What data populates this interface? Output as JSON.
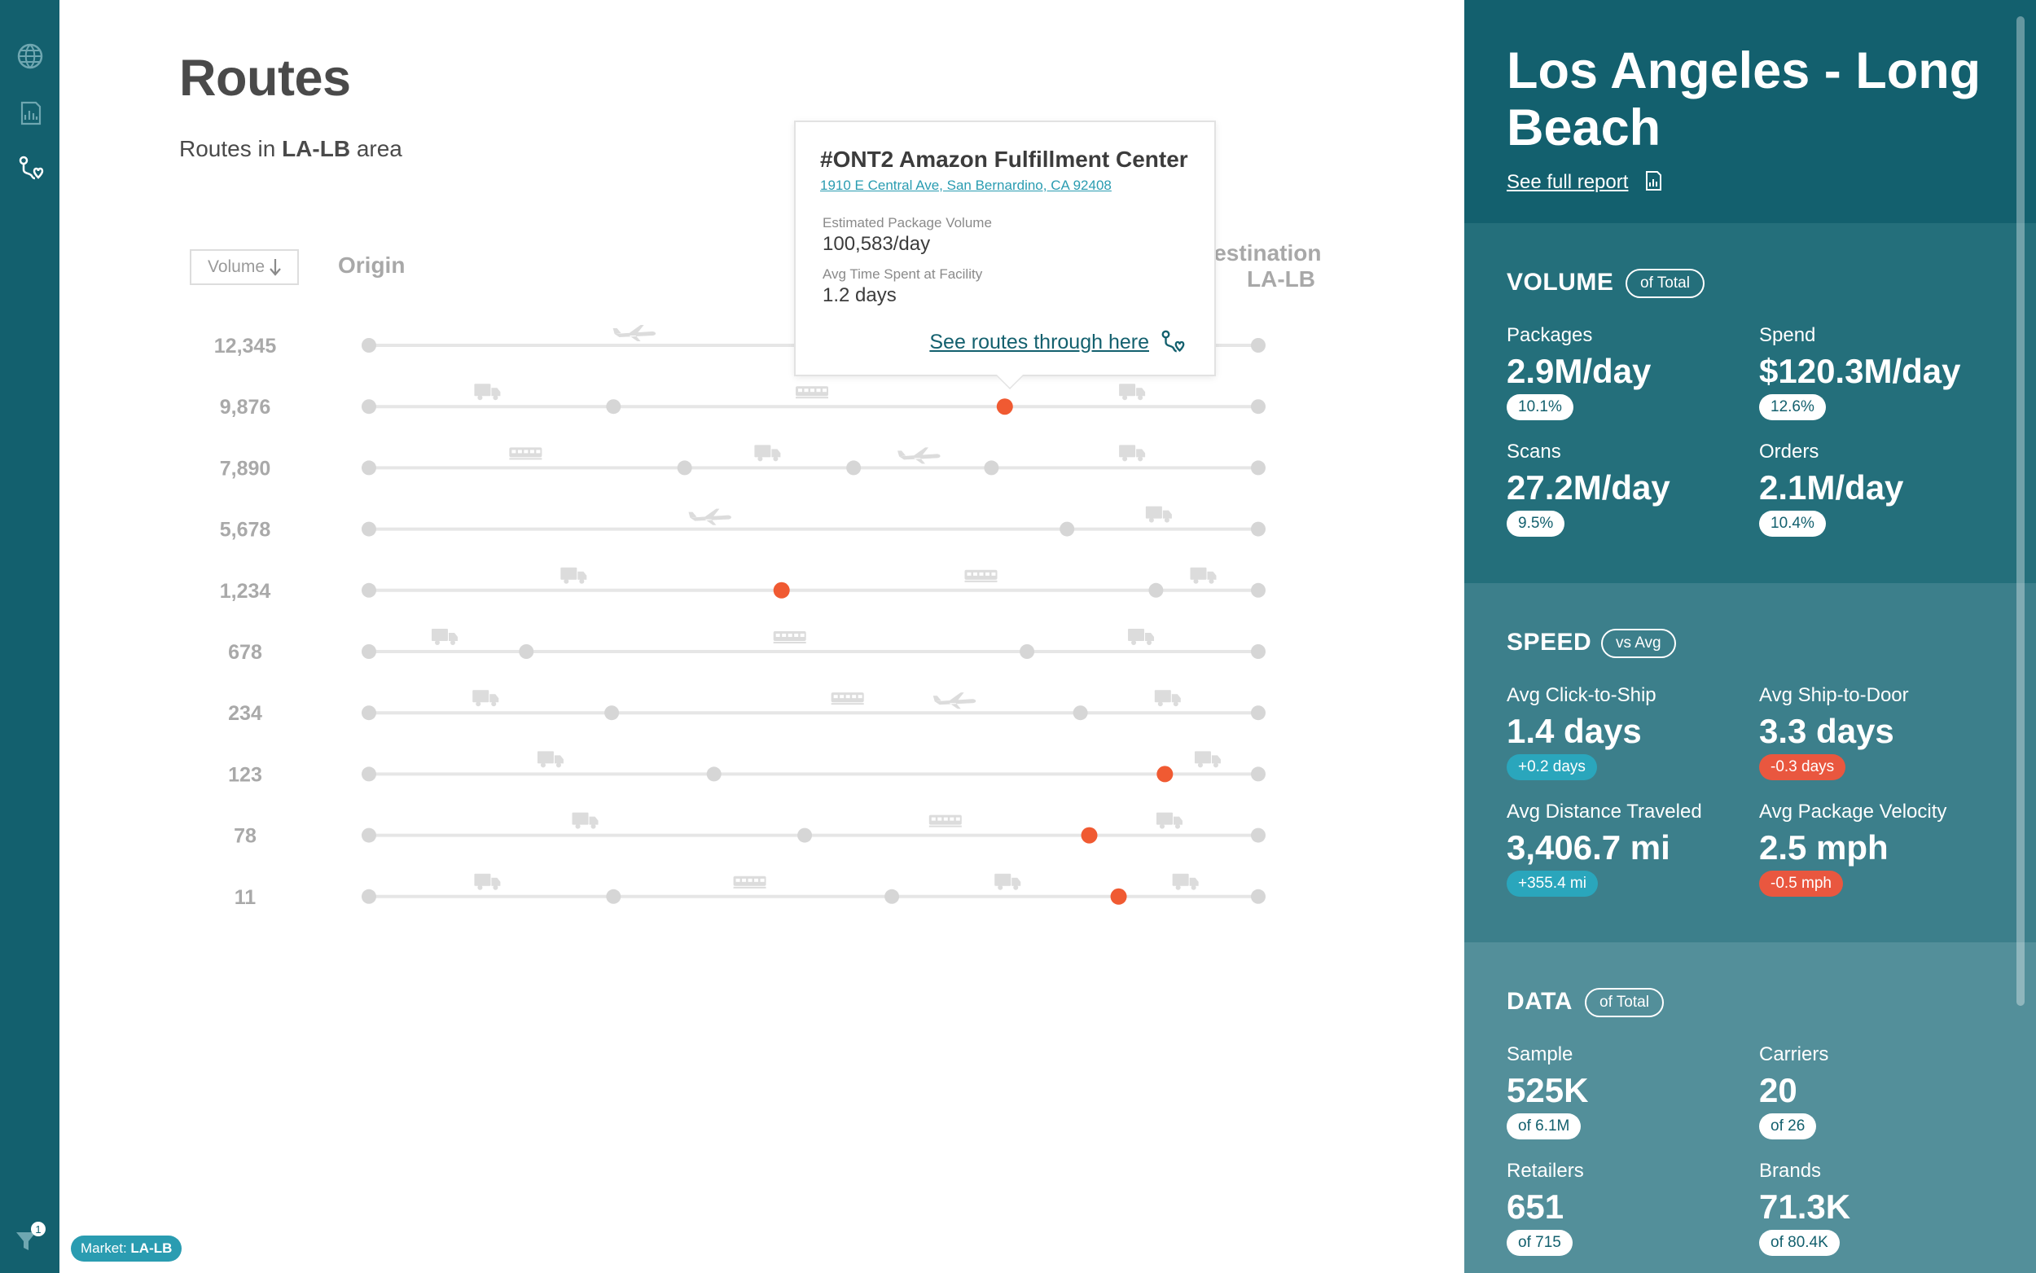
{
  "nav": {
    "items": [
      "globe-icon",
      "report-icon",
      "routes-icon"
    ],
    "active": "routes-icon",
    "filter_count": "1"
  },
  "market_badge": {
    "prefix": "Market: ",
    "value": "LA-LB"
  },
  "page": {
    "title": "Routes",
    "subtitle_pre": "Routes in ",
    "subtitle_bold": "LA-LB",
    "subtitle_post": " area"
  },
  "columns": {
    "sort_label": "Volume",
    "sort_icon": "arrow-down-icon",
    "origin": "Origin",
    "destination": "Destination",
    "destination_sub": "LA-LB"
  },
  "routes": [
    {
      "volume": "12,345",
      "nodes": [],
      "highlights": [],
      "vehicles": [
        {
          "type": "plane",
          "pos": 0.3
        }
      ]
    },
    {
      "volume": "9,876",
      "nodes": [
        0.275
      ],
      "highlights": [
        0.715
      ],
      "vehicles": [
        {
          "type": "truck",
          "pos": 0.135
        },
        {
          "type": "train",
          "pos": 0.5
        },
        {
          "type": "truck",
          "pos": 0.86
        }
      ]
    },
    {
      "volume": "7,890",
      "nodes": [
        0.355,
        0.545,
        0.7
      ],
      "highlights": [],
      "vehicles": [
        {
          "type": "train",
          "pos": 0.178
        },
        {
          "type": "truck",
          "pos": 0.45
        },
        {
          "type": "plane",
          "pos": 0.62
        },
        {
          "type": "truck",
          "pos": 0.86
        }
      ]
    },
    {
      "volume": "5,678",
      "nodes": [
        0.785
      ],
      "highlights": [],
      "vehicles": [
        {
          "type": "plane",
          "pos": 0.385
        },
        {
          "type": "truck",
          "pos": 0.89
        }
      ]
    },
    {
      "volume": "1,234",
      "nodes": [
        0.885
      ],
      "highlights": [
        0.464
      ],
      "vehicles": [
        {
          "type": "truck",
          "pos": 0.232
        },
        {
          "type": "train",
          "pos": 0.69
        },
        {
          "type": "truck",
          "pos": 0.94
        }
      ]
    },
    {
      "volume": "678",
      "nodes": [
        0.177,
        0.74
      ],
      "highlights": [],
      "vehicles": [
        {
          "type": "truck",
          "pos": 0.087
        },
        {
          "type": "train",
          "pos": 0.475
        },
        {
          "type": "truck",
          "pos": 0.87
        }
      ]
    },
    {
      "volume": "234",
      "nodes": [
        0.273,
        0.8
      ],
      "highlights": [],
      "vehicles": [
        {
          "type": "truck",
          "pos": 0.133
        },
        {
          "type": "train",
          "pos": 0.54
        },
        {
          "type": "plane",
          "pos": 0.66
        },
        {
          "type": "truck",
          "pos": 0.9
        }
      ]
    },
    {
      "volume": "123",
      "nodes": [
        0.388
      ],
      "highlights": [
        0.895
      ],
      "vehicles": [
        {
          "type": "truck",
          "pos": 0.206
        },
        {
          "type": "truck",
          "pos": 0.945
        }
      ]
    },
    {
      "volume": "78",
      "nodes": [
        0.49
      ],
      "highlights": [
        0.81
      ],
      "vehicles": [
        {
          "type": "truck",
          "pos": 0.245
        },
        {
          "type": "train",
          "pos": 0.65
        },
        {
          "type": "truck",
          "pos": 0.902
        }
      ]
    },
    {
      "volume": "11",
      "nodes": [
        0.275,
        0.588
      ],
      "highlights": [
        0.843
      ],
      "vehicles": [
        {
          "type": "truck",
          "pos": 0.135
        },
        {
          "type": "train",
          "pos": 0.43
        },
        {
          "type": "truck",
          "pos": 0.72
        },
        {
          "type": "truck",
          "pos": 0.92
        }
      ]
    }
  ],
  "popup": {
    "title": "#ONT2 Amazon Fulfillment Center",
    "address": "1910 E Central Ave, San Bernardino, CA 92408",
    "volume_label": "Estimated Package Volume",
    "volume_value": "100,583/day",
    "time_label": "Avg Time Spent at Facility",
    "time_value": "1.2 days",
    "link": "See routes through here",
    "link_icon": "route-pin-icon"
  },
  "panel": {
    "title": "Los Angeles - Long Beach",
    "report_link": "See full report",
    "report_icon": "report-icon",
    "volume": {
      "title": "VOLUME",
      "pill": "of Total",
      "stats": [
        {
          "label": "Packages",
          "value": "2.9M/day",
          "badge": "10.1%"
        },
        {
          "label": "Spend",
          "value": "$120.3M/day",
          "badge": "12.6%"
        },
        {
          "label": "Scans",
          "value": "27.2M/day",
          "badge": "9.5%"
        },
        {
          "label": "Orders",
          "value": "2.1M/day",
          "badge": "10.4%"
        }
      ]
    },
    "speed": {
      "title": "SPEED",
      "pill": "vs Avg",
      "stats": [
        {
          "label": "Avg Click-to-Ship",
          "value": "1.4 days",
          "badge": "+0.2 days",
          "trend": "pos"
        },
        {
          "label": "Avg Ship-to-Door",
          "value": "3.3 days",
          "badge": "-0.3 days",
          "trend": "neg"
        },
        {
          "label": "Avg Distance Traveled",
          "value": "3,406.7 mi",
          "badge": "+355.4 mi",
          "trend": "pos"
        },
        {
          "label": "Avg Package Velocity",
          "value": "2.5 mph",
          "badge": "-0.5 mph",
          "trend": "neg"
        }
      ]
    },
    "data": {
      "title": "DATA",
      "pill": "of Total",
      "stats": [
        {
          "label": "Sample",
          "value": "525K",
          "badge": "of 6.1M"
        },
        {
          "label": "Carriers",
          "value": "20",
          "badge": "of 26"
        },
        {
          "label": "Retailers",
          "value": "651",
          "badge": "of 715"
        },
        {
          "label": "Brands",
          "value": "71.3K",
          "badge": "of 80.4K"
        }
      ]
    }
  },
  "colors": {
    "nav_bg": "#13606e",
    "accent": "#2a9cb1",
    "highlight": "#f05a32",
    "negative": "#e9573f",
    "track": "#e6e6e6",
    "node": "#d6d6d6",
    "vehicle": "#dcdcdc"
  }
}
